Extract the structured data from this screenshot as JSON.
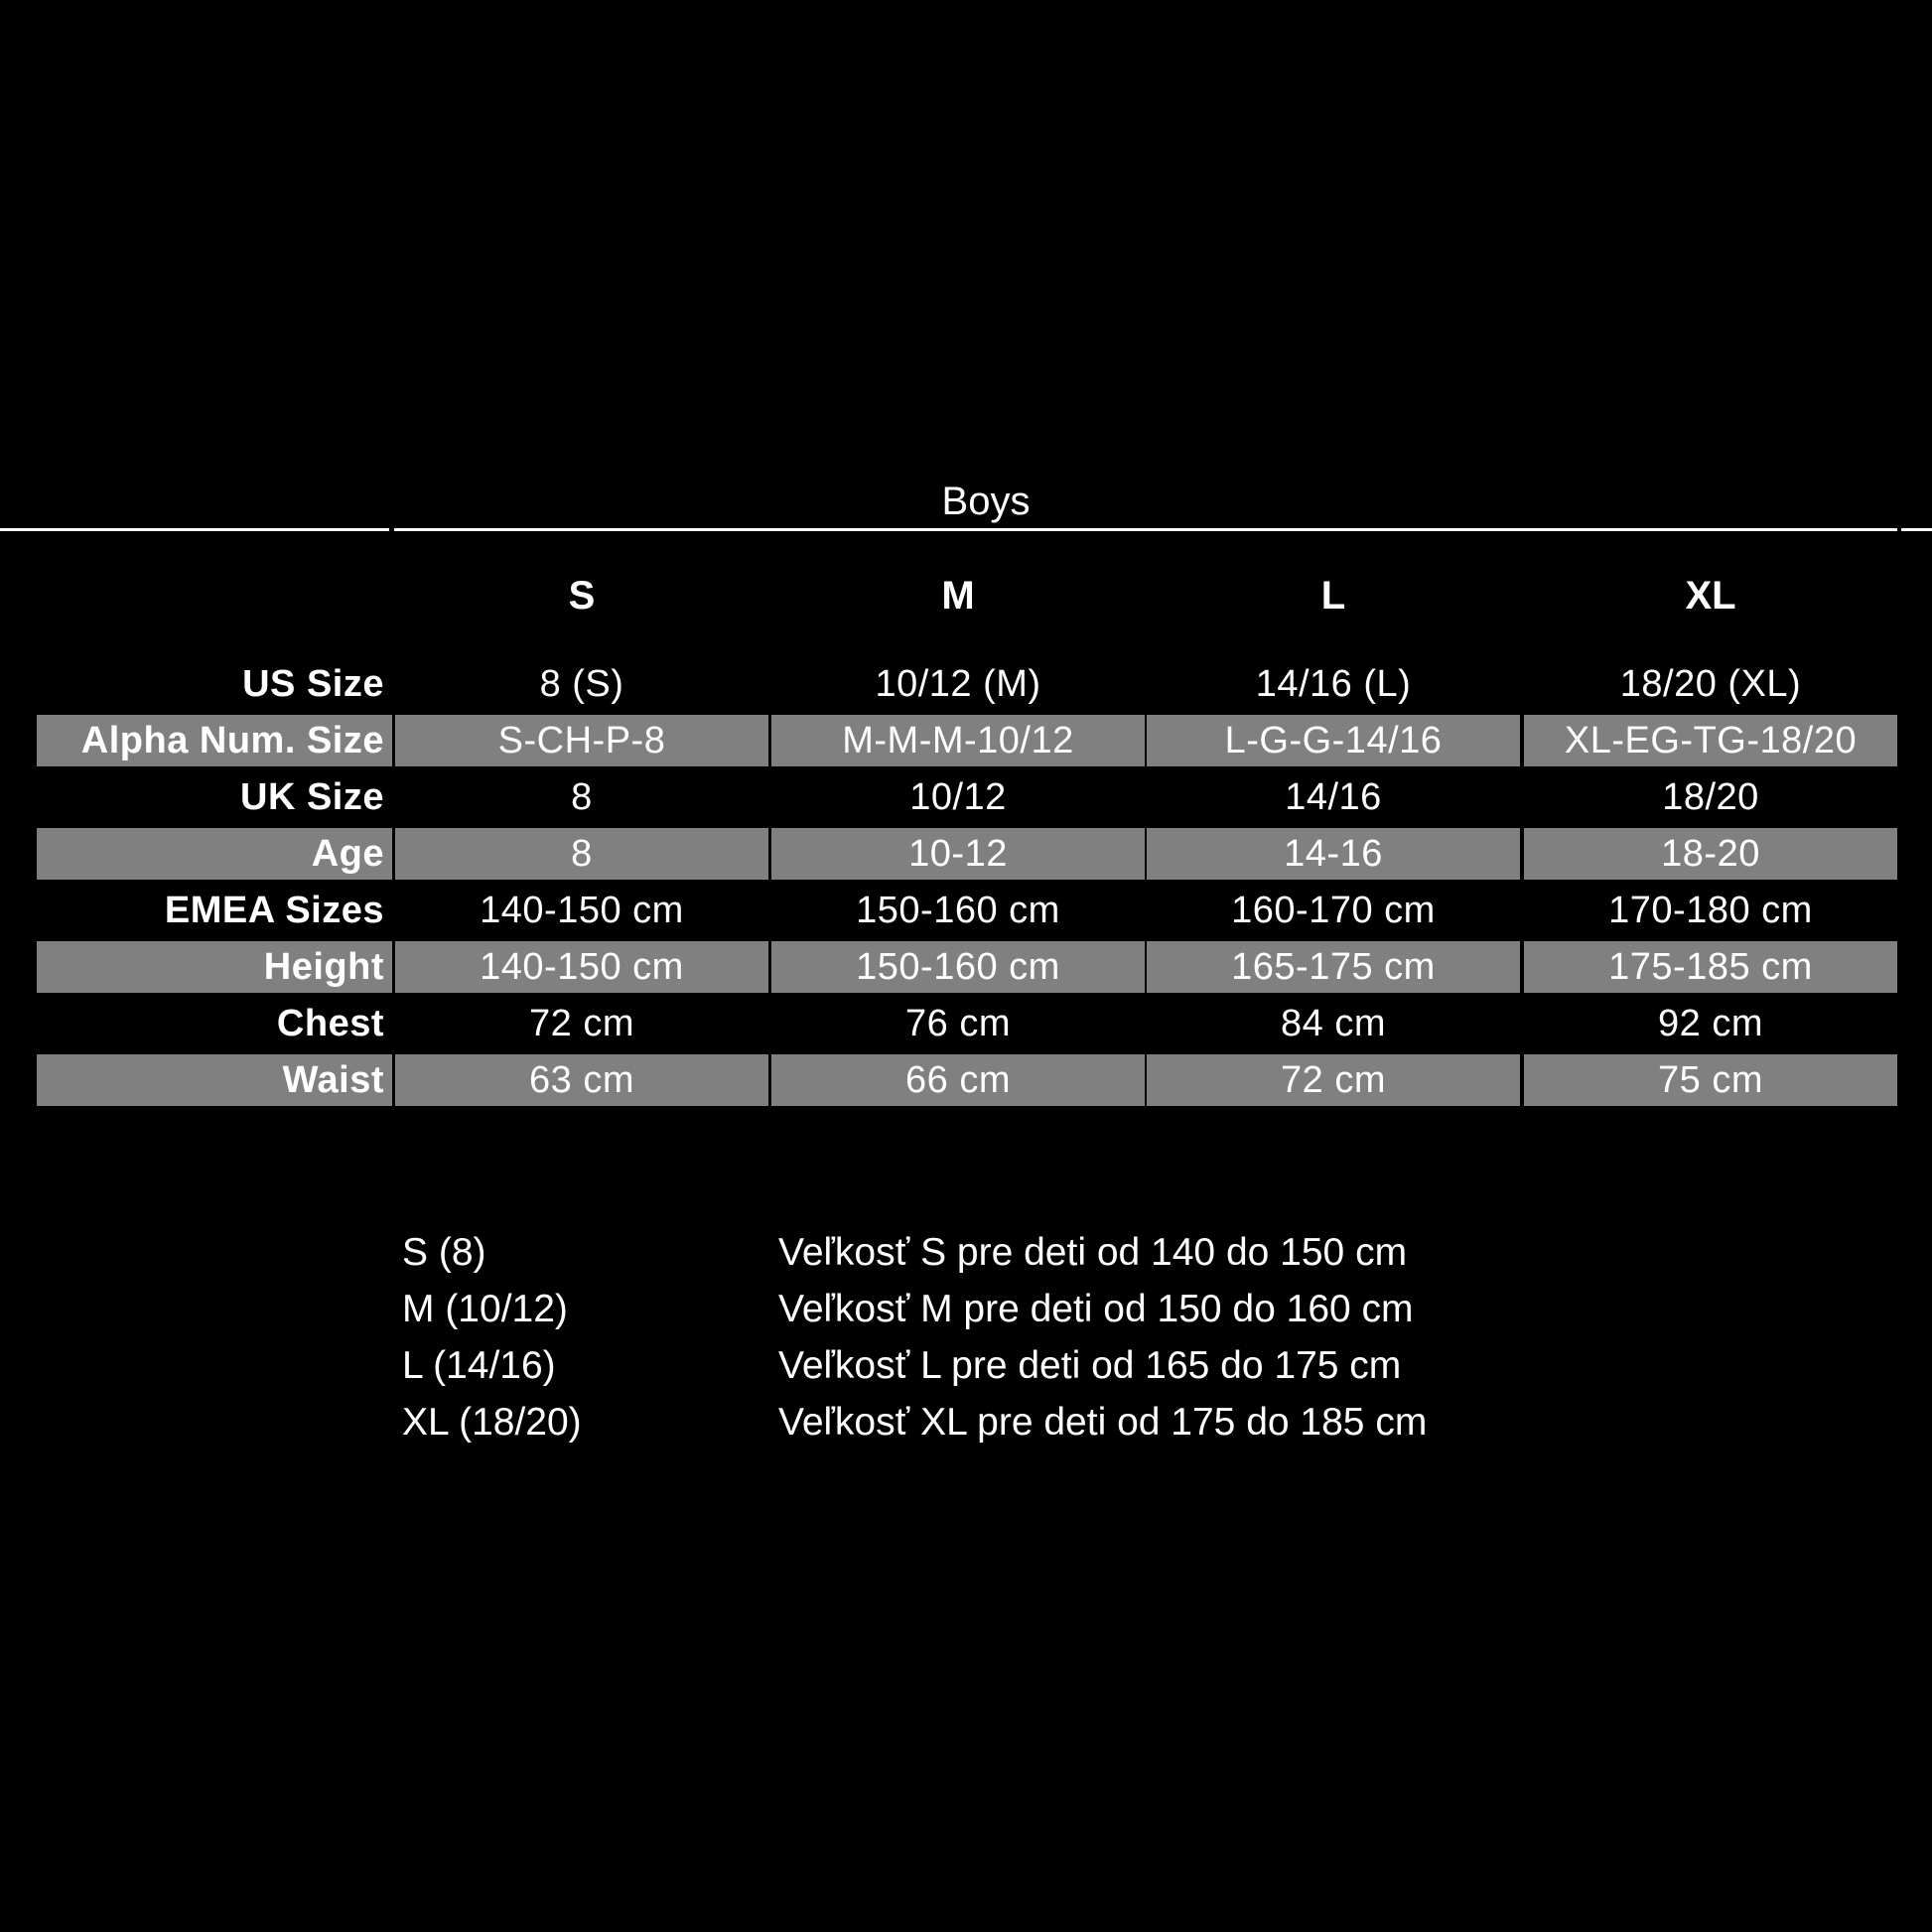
{
  "title": "Boys",
  "columns": [
    "S",
    "M",
    "L",
    "XL"
  ],
  "rows": [
    {
      "label": "US Size",
      "values": [
        "8 (S)",
        "10/12 (M)",
        "14/16 (L)",
        "18/20 (XL)"
      ],
      "shaded": false
    },
    {
      "label": "Alpha Num. Size",
      "values": [
        "S-CH-P-8",
        "M-M-M-10/12",
        "L-G-G-14/16",
        "XL-EG-TG-18/20"
      ],
      "shaded": true
    },
    {
      "label": "UK Size",
      "values": [
        "8",
        "10/12",
        "14/16",
        "18/20"
      ],
      "shaded": false
    },
    {
      "label": "Age",
      "values": [
        "8",
        "10-12",
        "14-16",
        "18-20"
      ],
      "shaded": true
    },
    {
      "label": "EMEA Sizes",
      "values": [
        "140-150 cm",
        "150-160 cm",
        "160-170 cm",
        "170-180 cm"
      ],
      "shaded": false
    },
    {
      "label": "Height",
      "values": [
        "140-150 cm",
        "150-160 cm",
        "165-175 cm",
        "175-185 cm"
      ],
      "shaded": true
    },
    {
      "label": "Chest",
      "values": [
        "72 cm",
        "76 cm",
        "84 cm",
        "92 cm"
      ],
      "shaded": false
    },
    {
      "label": "Waist",
      "values": [
        "63 cm",
        "66 cm",
        "72 cm",
        "75 cm"
      ],
      "shaded": true
    }
  ],
  "legend": [
    {
      "size": "S (8)",
      "text": "Veľkosť S pre deti od 140 do 150 cm"
    },
    {
      "size": "M (10/12)",
      "text": "Veľkosť M pre deti od 150 do 160 cm"
    },
    {
      "size": "L (14/16)",
      "text": "Veľkosť L pre deti od 165 do 175 cm"
    },
    {
      "size": "XL (18/20)",
      "text": "Veľkosť XL pre deti od 175 do 185 cm"
    }
  ],
  "colors": {
    "background": "#000000",
    "shaded_row": "#808080",
    "text": "#ffffff"
  }
}
